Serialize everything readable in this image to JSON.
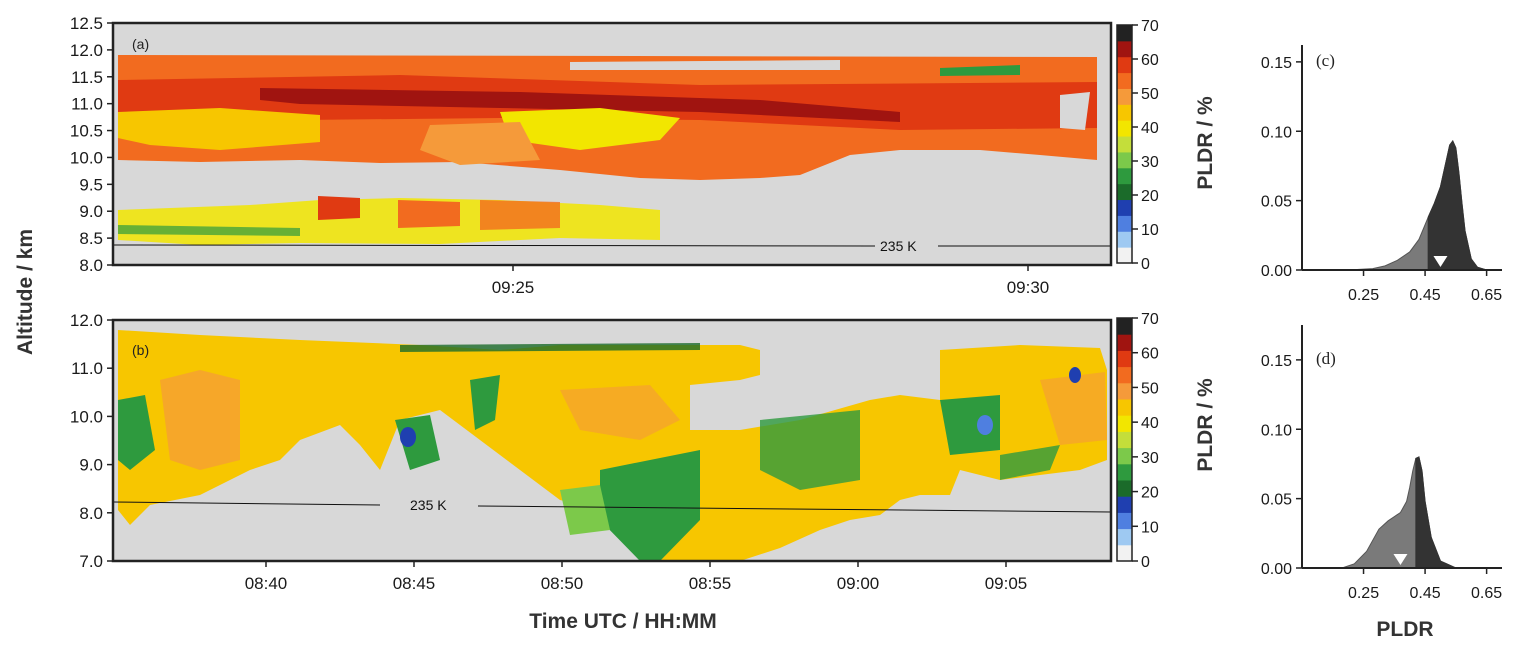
{
  "chart_data": [
    {
      "panel": "(a)",
      "type": "heatmap",
      "ylabel": "Altitude / km",
      "ylim": [
        8.0,
        12.5
      ],
      "y_ticks": [
        "12.5",
        "12.0",
        "11.5",
        "11.0",
        "10.5",
        "10.0",
        "9.5",
        "9.0",
        "8.5",
        "8.0"
      ],
      "x_ticks": [
        "09:25",
        "09:30"
      ],
      "isotherm_label": "235 K",
      "colorbar": {
        "label": "PLDR / %",
        "ticks": [
          "70",
          "60",
          "50",
          "40",
          "30",
          "20",
          "10",
          "0"
        ],
        "levels": [
          0,
          5,
          10,
          15,
          20,
          25,
          30,
          35,
          40,
          45,
          50,
          55,
          60,
          65,
          70
        ],
        "colors": [
          "#f2f2f2",
          "#9ec9f2",
          "#4f7fe0",
          "#1f3fb0",
          "#1b6b2a",
          "#2e9a3e",
          "#7cc94a",
          "#c4de3a",
          "#f2e600",
          "#f7c600",
          "#f59a3a",
          "#f26b1f",
          "#e03a12",
          "#a01410",
          "#222222"
        ]
      },
      "cloud_top_km": 11.9,
      "cloud_base_km": 9.9,
      "isotherm_235K_km": 8.4,
      "layers": [
        {
          "bottom_km": 11.5,
          "top_km": 11.9,
          "pldr_percent": 55
        },
        {
          "bottom_km": 10.8,
          "top_km": 11.5,
          "pldr_percent": 62
        },
        {
          "bottom_km": 10.2,
          "top_km": 10.8,
          "pldr_percent": 52
        },
        {
          "bottom_km": 9.9,
          "top_km": 10.2,
          "pldr_percent": 50
        }
      ]
    },
    {
      "panel": "(b)",
      "type": "heatmap",
      "ylabel": "Altitude / km",
      "ylim": [
        7.0,
        12.0
      ],
      "y_ticks": [
        "12.0",
        "11.0",
        "10.0",
        "9.0",
        "8.0",
        "7.0"
      ],
      "x_ticks": [
        "08:40",
        "08:45",
        "08:50",
        "08:55",
        "09:00",
        "09:05"
      ],
      "xlabel": "Time UTC / HH:MM",
      "isotherm_label": "235 K",
      "colorbar": {
        "label": "PLDR / %",
        "ticks": [
          "70",
          "60",
          "50",
          "40",
          "30",
          "20",
          "10",
          "0"
        ]
      },
      "isotherm_235K_km": [
        8.25,
        8.05
      ],
      "dominant_pldr_percent": 40
    },
    {
      "panel": "(c)",
      "type": "area",
      "ylim": [
        0.0,
        0.16
      ],
      "y_ticks": [
        "0.15",
        "0.10",
        "0.05",
        "0.00"
      ],
      "xlim": [
        0.05,
        0.7
      ],
      "x_ticks": [
        "0.25",
        "0.45",
        "0.65"
      ],
      "x": [
        0.05,
        0.2,
        0.28,
        0.32,
        0.36,
        0.4,
        0.43,
        0.46,
        0.48,
        0.5,
        0.52,
        0.53,
        0.54,
        0.55,
        0.56,
        0.57,
        0.58,
        0.6,
        0.62,
        0.65,
        0.7
      ],
      "y": [
        0.0,
        0.0,
        0.001,
        0.003,
        0.007,
        0.013,
        0.022,
        0.038,
        0.048,
        0.06,
        0.08,
        0.09,
        0.093,
        0.088,
        0.07,
        0.048,
        0.028,
        0.008,
        0.002,
        0.0,
        0.0
      ],
      "split_x": 0.46,
      "marker_x": 0.5
    },
    {
      "panel": "(d)",
      "type": "area",
      "ylim": [
        0.0,
        0.16
      ],
      "y_ticks": [
        "0.15",
        "0.10",
        "0.05",
        "0.00"
      ],
      "xlim": [
        0.05,
        0.7
      ],
      "x_ticks": [
        "0.25",
        "0.45",
        "0.65"
      ],
      "xlabel": "PLDR",
      "x": [
        0.05,
        0.18,
        0.22,
        0.26,
        0.3,
        0.33,
        0.35,
        0.37,
        0.39,
        0.4,
        0.41,
        0.42,
        0.43,
        0.44,
        0.45,
        0.47,
        0.5,
        0.55,
        0.7
      ],
      "y": [
        0.0,
        0.0,
        0.003,
        0.012,
        0.028,
        0.034,
        0.037,
        0.04,
        0.048,
        0.058,
        0.07,
        0.079,
        0.08,
        0.07,
        0.048,
        0.022,
        0.005,
        0.0,
        0.0
      ],
      "split_x": 0.42,
      "marker_x": 0.37
    }
  ]
}
